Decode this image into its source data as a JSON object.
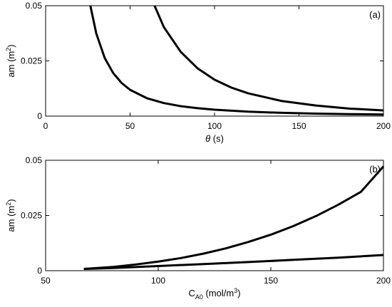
{
  "chart_data": [
    {
      "type": "line",
      "panel_label": "(a)",
      "xlabel": "θ (s)",
      "xlabel_parts": {
        "symbol": "θ",
        "unit": " (s)"
      },
      "ylabel": "am (m2)",
      "ylabel_parts": {
        "base": "am (m",
        "sup": "2",
        "end": ")"
      },
      "xlim": [
        0,
        200
      ],
      "ylim": [
        0,
        0.05
      ],
      "xticks": [
        0,
        50,
        100,
        150,
        200
      ],
      "xtick_labels": [
        "0",
        "50",
        "100",
        "150",
        "200"
      ],
      "yticks": [
        0,
        0.025,
        0.05
      ],
      "ytick_labels": [
        "0",
        "0.025",
        "0.05"
      ],
      "grid": false,
      "series": [
        {
          "color": "#000000",
          "x": [
            26.5,
            30,
            35,
            40,
            45,
            50,
            60,
            70,
            80,
            90,
            100,
            120,
            140,
            160,
            180,
            200
          ],
          "y": [
            0.05,
            0.0374,
            0.0263,
            0.0195,
            0.015,
            0.0119,
            0.0081,
            0.0059,
            0.0045,
            0.0036,
            0.0029,
            0.002,
            0.00148,
            0.00114,
            0.0009,
            0.00073
          ]
        },
        {
          "color": "#000000",
          "x": [
            64.5,
            70,
            80,
            90,
            100,
            110,
            120,
            140,
            160,
            180,
            200
          ],
          "y": [
            0.05,
            0.0403,
            0.0291,
            0.0216,
            0.0165,
            0.0129,
            0.0103,
            0.0068,
            0.0048,
            0.0034,
            0.0026
          ]
        }
      ]
    },
    {
      "type": "line",
      "panel_label": "(b)",
      "xlabel": "CA0 (mol/m3)",
      "xlabel_parts": {
        "base": "C",
        "sub": "A0",
        "mid": " (mol/m",
        "sup": "3",
        "end": ")"
      },
      "ylabel": "am (m2)",
      "ylabel_parts": {
        "base": "am (m",
        "sup": "2",
        "end": ")"
      },
      "xlim": [
        50,
        200
      ],
      "ylim": [
        0,
        0.05
      ],
      "xticks": [
        50,
        100,
        150,
        200
      ],
      "xtick_labels": [
        "50",
        "100",
        "150",
        "200"
      ],
      "yticks": [
        0,
        0.025,
        0.05
      ],
      "ytick_labels": [
        "0",
        "0.025",
        "0.05"
      ],
      "grid": false,
      "series": [
        {
          "color": "#000000",
          "x": [
            67,
            80,
            90,
            100,
            110,
            120,
            130,
            140,
            150,
            160,
            170,
            180,
            190,
            200
          ],
          "y": [
            0.0008,
            0.0017,
            0.0028,
            0.0041,
            0.0057,
            0.0077,
            0.0101,
            0.013,
            0.0163,
            0.0202,
            0.0247,
            0.0299,
            0.0357,
            0.0472
          ]
        },
        {
          "color": "#000000",
          "x": [
            67,
            80,
            100,
            120,
            140,
            160,
            180,
            200
          ],
          "y": [
            0.0008,
            0.0012,
            0.0021,
            0.003,
            0.0039,
            0.0049,
            0.0059,
            0.0071
          ]
        }
      ]
    }
  ]
}
